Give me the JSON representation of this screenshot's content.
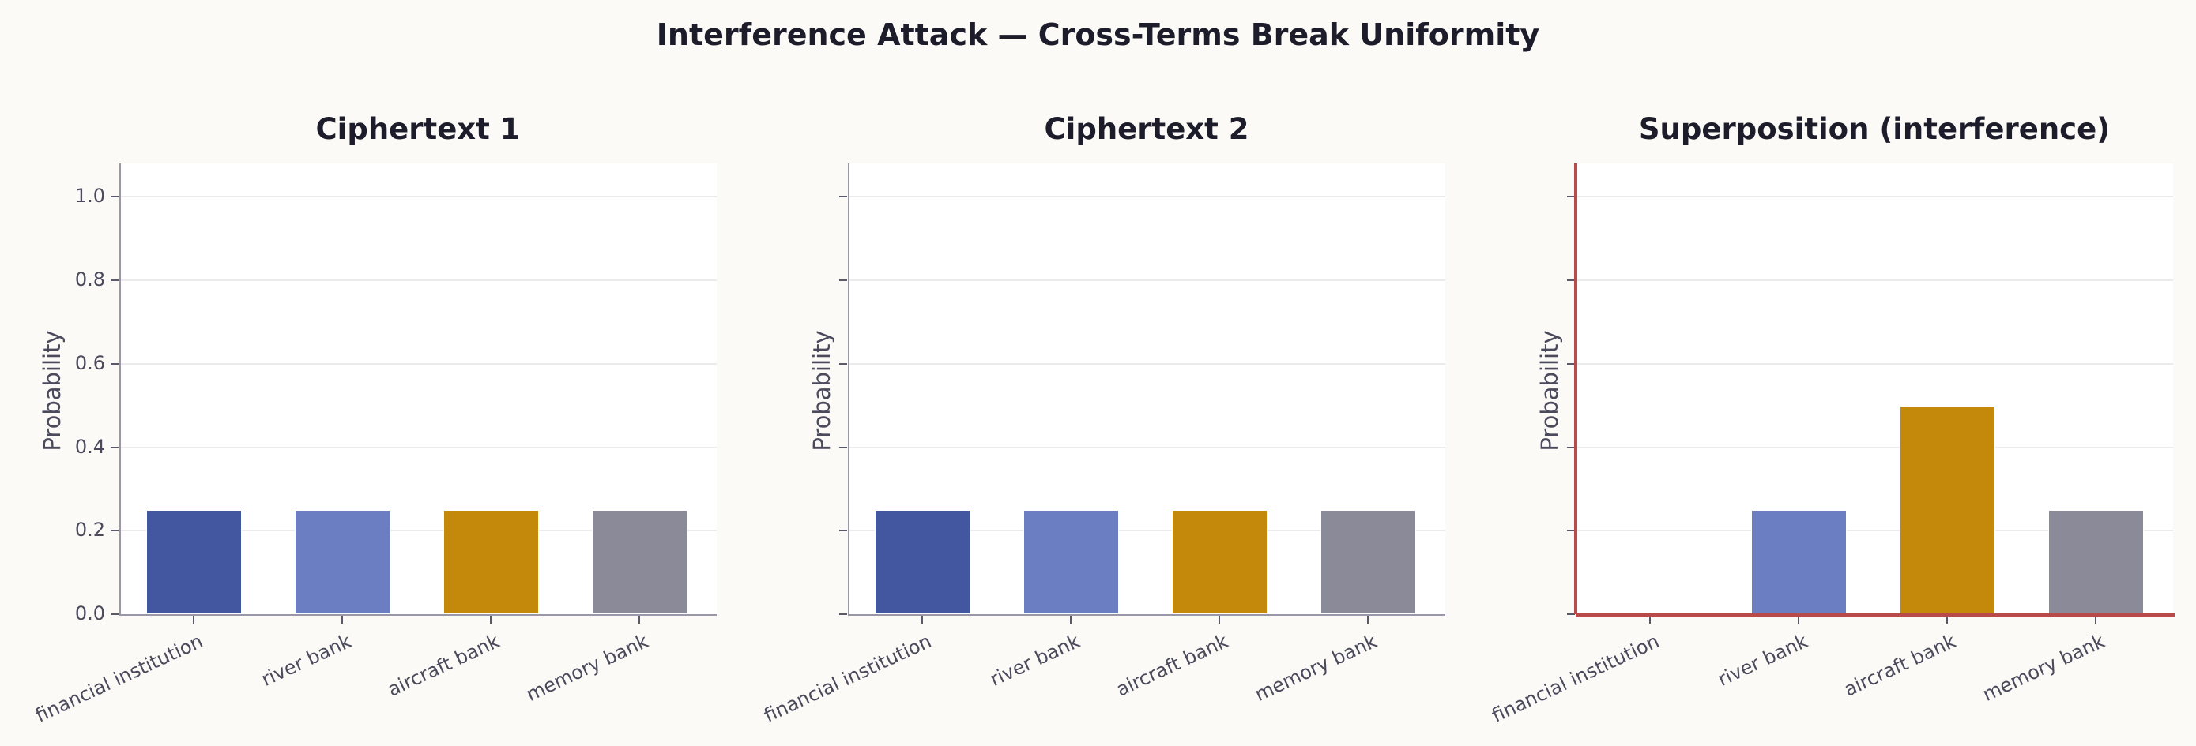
{
  "title": "Interference Attack — Cross-Terms Break Uniformity",
  "chart_data": [
    {
      "type": "bar",
      "title": "Ciphertext 1",
      "categories": [
        "financial institution",
        "river bank",
        "aircraft bank",
        "memory bank"
      ],
      "values": [
        0.25,
        0.25,
        0.25,
        0.25
      ],
      "colors": [
        "#4356a0",
        "#6b7ec1",
        "#c4880b",
        "#8b8a99"
      ],
      "xlabel": "",
      "ylabel": "Probability",
      "ylim": [
        0,
        1.08
      ],
      "yticks": [
        "0.0",
        "0.2",
        "0.4",
        "0.6",
        "0.8",
        "1.0"
      ],
      "grid": "y"
    },
    {
      "type": "bar",
      "title": "Ciphertext 2",
      "categories": [
        "financial institution",
        "river bank",
        "aircraft bank",
        "memory bank"
      ],
      "values": [
        0.25,
        0.25,
        0.25,
        0.25
      ],
      "colors": [
        "#4356a0",
        "#6b7ec1",
        "#c4880b",
        "#8b8a99"
      ],
      "xlabel": "",
      "ylabel": "Probability",
      "ylim": [
        0,
        1.08
      ],
      "grid": "y"
    },
    {
      "type": "bar",
      "title": "Superposition (interference)",
      "categories": [
        "financial institution",
        "river bank",
        "aircraft bank",
        "memory bank"
      ],
      "values": [
        0.0,
        0.25,
        0.5,
        0.25
      ],
      "colors": [
        "#c0392b",
        "#6b7ec1",
        "#c4880b",
        "#8b8a99"
      ],
      "xlabel": "",
      "ylabel": "Probability",
      "ylim": [
        0,
        1.08
      ],
      "grid": "y",
      "spine_color": "#b94a4a"
    }
  ]
}
